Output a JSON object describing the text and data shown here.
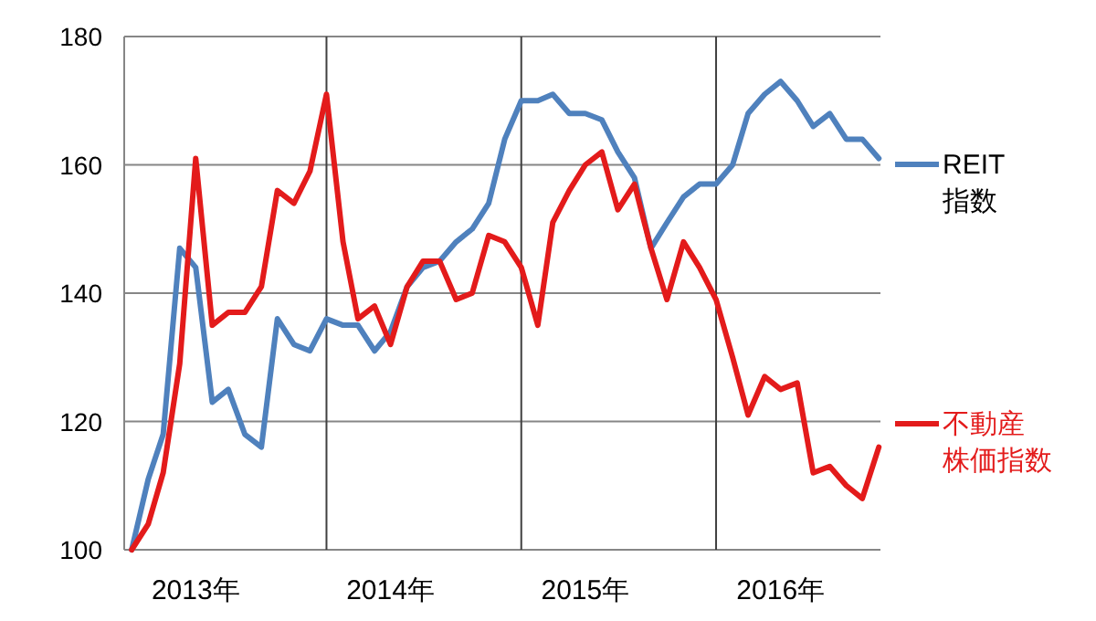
{
  "chart_data": {
    "type": "line",
    "x": [
      "2013-01",
      "2013-02",
      "2013-03",
      "2013-04",
      "2013-05",
      "2013-06",
      "2013-07",
      "2013-08",
      "2013-09",
      "2013-10",
      "2013-11",
      "2013-12",
      "2014-01",
      "2014-02",
      "2014-03",
      "2014-04",
      "2014-05",
      "2014-06",
      "2014-07",
      "2014-08",
      "2014-09",
      "2014-10",
      "2014-11",
      "2014-12",
      "2015-01",
      "2015-02",
      "2015-03",
      "2015-04",
      "2015-05",
      "2015-06",
      "2015-07",
      "2015-08",
      "2015-09",
      "2015-10",
      "2015-11",
      "2015-12",
      "2016-01",
      "2016-02",
      "2016-03",
      "2016-04",
      "2016-05",
      "2016-06",
      "2016-07",
      "2016-08",
      "2016-09",
      "2016-10",
      "2016-11"
    ],
    "series": [
      {
        "name": "REIT指数",
        "color": "#4f81bd",
        "values": [
          100,
          111,
          118,
          147,
          144,
          123,
          125,
          118,
          116,
          136,
          132,
          131,
          136,
          135,
          135,
          131,
          134,
          141,
          144,
          145,
          148,
          150,
          154,
          164,
          170,
          170,
          171,
          168,
          168,
          167,
          162,
          158,
          147,
          151,
          155,
          157,
          157,
          160,
          168,
          171,
          173,
          170,
          166,
          168,
          164,
          164,
          161
        ]
      },
      {
        "name": "不動産株価指数",
        "color": "#e31b1b",
        "values": [
          100,
          104,
          112,
          129,
          161,
          135,
          137,
          137,
          141,
          156,
          154,
          159,
          171,
          148,
          136,
          138,
          132,
          141,
          145,
          145,
          139,
          140,
          149,
          148,
          144,
          135,
          151,
          156,
          160,
          162,
          153,
          157,
          147,
          139,
          148,
          144,
          139,
          130,
          121,
          127,
          125,
          126,
          112,
          113,
          110,
          108,
          116
        ]
      }
    ],
    "xlim": [
      "2012-12-18",
      "2016-11-04"
    ],
    "xticks": [
      {
        "value": "2014-01-01",
        "label": null
      },
      {
        "value": "2015-01-01",
        "label": null
      },
      {
        "value": "2016-01-01",
        "label": null
      },
      {
        "value": "2013-05-01",
        "label": "2013年"
      },
      {
        "value": "2014-05-01",
        "label": "2014年"
      },
      {
        "value": "2015-05-01",
        "label": "2015年"
      },
      {
        "value": "2016-05-01",
        "label": "2016年"
      }
    ],
    "ylim": [
      100,
      180
    ],
    "yticks": [
      100,
      120,
      140,
      160,
      180
    ],
    "grid": true,
    "legend": "right",
    "marker": "none",
    "line_style": "solid"
  }
}
